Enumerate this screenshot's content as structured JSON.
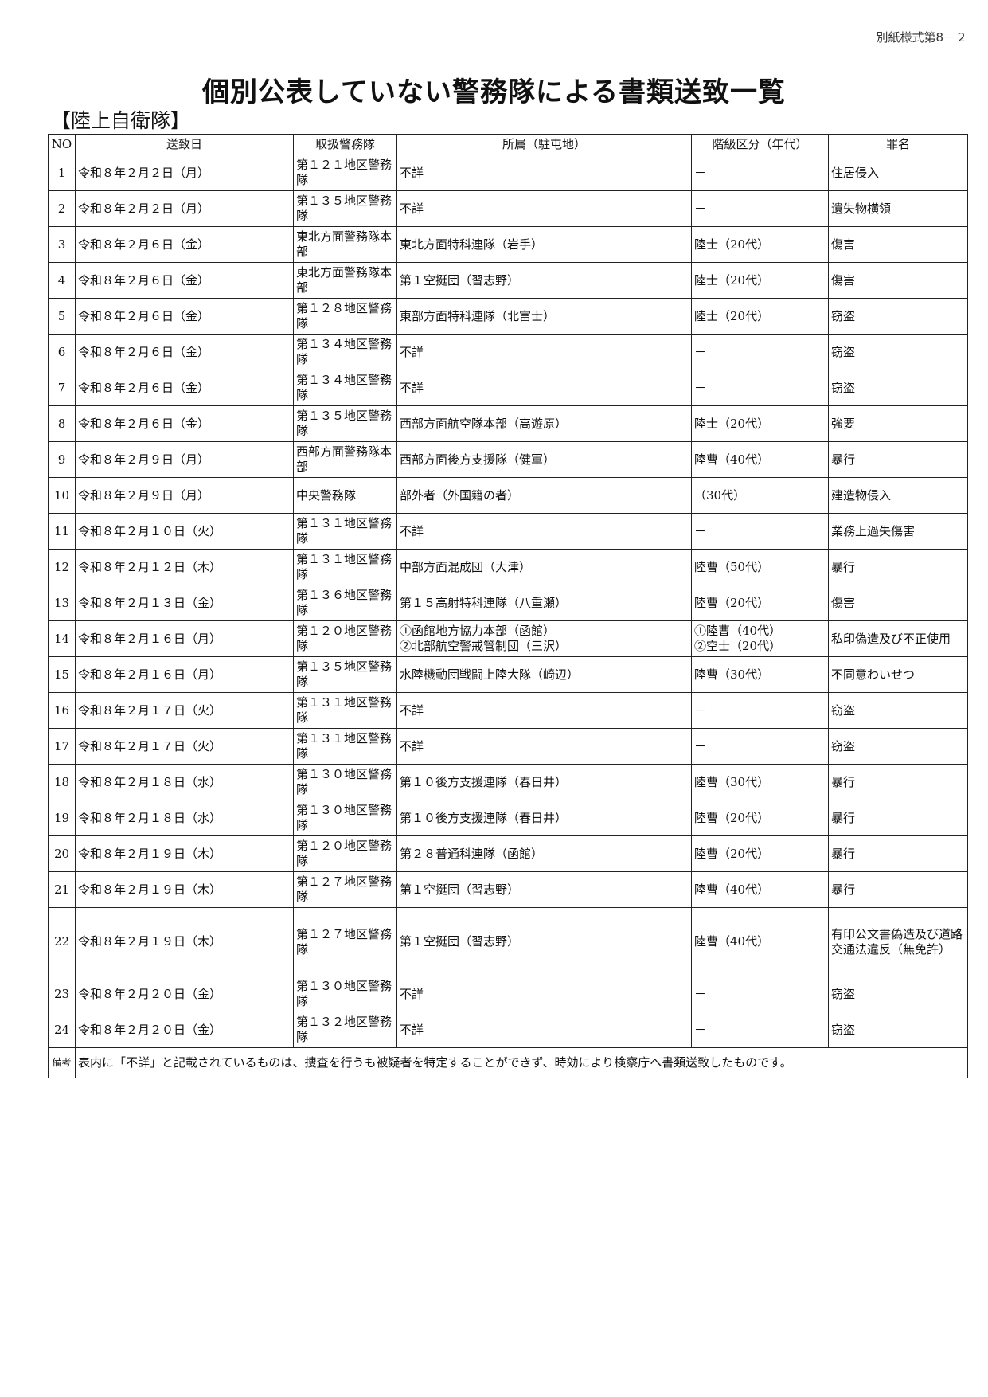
{
  "form_number": "別紙様式第8－２",
  "title": "個別公表していない警務隊による書類送致一覧",
  "section": "【陸上自衛隊】",
  "headers": [
    "NO",
    "送致日",
    "取扱警務隊",
    "所属（駐屯地）",
    "階級区分（年代）",
    "罪名"
  ],
  "rows": [
    [
      "1",
      "令和８年２月２日（月）",
      "第１２１地区警務隊",
      "不詳",
      "－",
      "住居侵入"
    ],
    [
      "2",
      "令和８年２月２日（月）",
      "第１３５地区警務隊",
      "不詳",
      "－",
      "遺失物横領"
    ],
    [
      "3",
      "令和８年２月６日（金）",
      "東北方面警務隊本部",
      "東北方面特科連隊（岩手）",
      "陸士（20代）",
      "傷害"
    ],
    [
      "4",
      "令和８年２月６日（金）",
      "東北方面警務隊本部",
      "第１空挺団（習志野）",
      "陸士（20代）",
      "傷害"
    ],
    [
      "5",
      "令和８年２月６日（金）",
      "第１２８地区警務隊",
      "東部方面特科連隊（北富士）",
      "陸士（20代）",
      "窃盗"
    ],
    [
      "6",
      "令和８年２月６日（金）",
      "第１３４地区警務隊",
      "不詳",
      "－",
      "窃盗"
    ],
    [
      "7",
      "令和８年２月６日（金）",
      "第１３４地区警務隊",
      "不詳",
      "－",
      "窃盗"
    ],
    [
      "8",
      "令和８年２月６日（金）",
      "第１３５地区警務隊",
      "西部方面航空隊本部（高遊原）",
      "陸士（20代）",
      "強要"
    ],
    [
      "9",
      "令和８年２月９日（月）",
      "西部方面警務隊本部",
      "西部方面後方支援隊（健軍）",
      "陸曹（40代）",
      "暴行"
    ],
    [
      "10",
      "令和８年２月９日（月）",
      "中央警務隊",
      "部外者（外国籍の者）",
      "（30代）",
      "建造物侵入"
    ],
    [
      "11",
      "令和８年２月１０日（火）",
      "第１３１地区警務隊",
      "不詳",
      "－",
      "業務上過失傷害"
    ],
    [
      "12",
      "令和８年２月１２日（木）",
      "第１３１地区警務隊",
      "中部方面混成団（大津）",
      "陸曹（50代）",
      "暴行"
    ],
    [
      "13",
      "令和８年２月１３日（金）",
      "第１３６地区警務隊",
      "第１５高射特科連隊（八重瀬）",
      "陸曹（20代）",
      "傷害"
    ],
    [
      "14",
      "令和８年２月１６日（月）",
      "第１２０地区警務隊",
      "①函館地方協力本部（函館）\n②北部航空警戒管制団（三沢）",
      "①陸曹（40代）\n②空士（20代）",
      "私印偽造及び不正使用"
    ],
    [
      "15",
      "令和８年２月１６日（月）",
      "第１３５地区警務隊",
      "水陸機動団戦闘上陸大隊（崎辺）",
      "陸曹（30代）",
      "不同意わいせつ"
    ],
    [
      "16",
      "令和８年２月１７日（火）",
      "第１３１地区警務隊",
      "不詳",
      "－",
      "窃盗"
    ],
    [
      "17",
      "令和８年２月１７日（火）",
      "第１３１地区警務隊",
      "不詳",
      "－",
      "窃盗"
    ],
    [
      "18",
      "令和８年２月１８日（水）",
      "第１３０地区警務隊",
      "第１０後方支援連隊（春日井）",
      "陸曹（30代）",
      "暴行"
    ],
    [
      "19",
      "令和８年２月１８日（水）",
      "第１３０地区警務隊",
      "第１０後方支援連隊（春日井）",
      "陸曹（20代）",
      "暴行"
    ],
    [
      "20",
      "令和８年２月１９日（木）",
      "第１２０地区警務隊",
      "第２８普通科連隊（函館）",
      "陸曹（20代）",
      "暴行"
    ],
    [
      "21",
      "令和８年２月１９日（木）",
      "第１２７地区警務隊",
      "第１空挺団（習志野）",
      "陸曹（40代）",
      "暴行"
    ],
    [
      "22",
      "令和８年２月１９日（木）",
      "第１２７地区警務隊",
      "第１空挺団（習志野）",
      "陸曹（40代）",
      "有印公文書偽造及び道路交通法違反（無免許）"
    ],
    [
      "23",
      "令和８年２月２０日（金）",
      "第１３０地区警務隊",
      "不詳",
      "－",
      "窃盗"
    ],
    [
      "24",
      "令和８年２月２０日（金）",
      "第１３２地区警務隊",
      "不詳",
      "－",
      "窃盗"
    ]
  ],
  "note": {
    "label": "備考",
    "text": "表内に「不詳」と記載されているものは、捜査を行うも被疑者を特定することができず、時効により検察庁へ書類送致したものです。"
  }
}
